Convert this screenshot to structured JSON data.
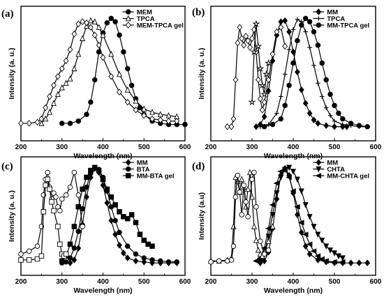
{
  "chart_data": [
    {
      "type": "line",
      "panel_label": "(a)",
      "xlabel": "Wavelength (nm)",
      "ylabel": "Intensity (a. u.)",
      "xlim": [
        200,
        600
      ],
      "xticks": [
        200,
        300,
        400,
        500,
        600
      ],
      "legend_position": "top-right",
      "series": [
        {
          "name": "MEM",
          "marker": "filled-circle",
          "x": [
            300,
            320,
            340,
            360,
            370,
            380,
            390,
            400,
            410,
            420,
            430,
            440,
            450,
            460,
            470,
            480,
            490,
            500,
            520,
            540,
            560,
            580,
            600
          ],
          "y": [
            0.06,
            0.06,
            0.08,
            0.14,
            0.25,
            0.45,
            0.7,
            0.87,
            0.96,
            1.0,
            0.97,
            0.85,
            0.7,
            0.55,
            0.4,
            0.28,
            0.2,
            0.14,
            0.08,
            0.06,
            0.05,
            0.05,
            0.05
          ]
        },
        {
          "name": "TPCA",
          "marker": "open-triangle",
          "x": [
            250,
            260,
            270,
            280,
            290,
            300,
            310,
            320,
            330,
            340,
            350,
            360,
            370,
            380,
            390,
            400,
            420,
            440,
            460,
            480,
            500,
            520,
            540,
            560,
            580
          ],
          "y": [
            0.06,
            0.1,
            0.16,
            0.24,
            0.32,
            0.38,
            0.42,
            0.46,
            0.55,
            0.68,
            0.82,
            0.93,
            0.98,
            0.97,
            0.92,
            0.85,
            0.68,
            0.5,
            0.36,
            0.26,
            0.19,
            0.16,
            0.14,
            0.13,
            0.12
          ]
        },
        {
          "name": "MEM-TPCA gel",
          "marker": "open-diamond",
          "x": [
            200,
            220,
            240,
            250,
            260,
            270,
            280,
            290,
            300,
            310,
            320,
            330,
            340,
            350,
            360,
            370,
            380,
            390,
            400,
            420,
            440,
            460,
            480,
            500,
            520,
            540,
            560,
            580
          ],
          "y": [
            0.06,
            0.06,
            0.07,
            0.1,
            0.2,
            0.3,
            0.4,
            0.48,
            0.55,
            0.62,
            0.72,
            0.86,
            0.95,
            0.97,
            0.96,
            0.92,
            0.85,
            0.76,
            0.65,
            0.48,
            0.34,
            0.25,
            0.18,
            0.13,
            0.1,
            0.09,
            0.08,
            0.08
          ]
        }
      ]
    },
    {
      "type": "line",
      "panel_label": "(b)",
      "xlabel": "Wavelength (nm)",
      "ylabel": "Intensity (a. u.)",
      "xlim": [
        200,
        600
      ],
      "xticks": [
        200,
        300,
        400,
        500,
        600
      ],
      "legend_position": "top-right",
      "series": [
        {
          "name": "MM",
          "marker": "filled-diamond",
          "x": [
            310,
            320,
            330,
            340,
            350,
            360,
            370,
            380,
            390,
            400,
            410,
            420,
            430,
            440,
            450,
            460,
            480,
            500,
            520,
            530
          ],
          "y": [
            0.03,
            0.05,
            0.12,
            0.35,
            0.62,
            0.85,
            0.97,
            0.98,
            0.88,
            0.7,
            0.52,
            0.36,
            0.24,
            0.15,
            0.09,
            0.06,
            0.04,
            0.03,
            0.03,
            0.03
          ]
        },
        {
          "name": "TPCA",
          "marker": "cross",
          "x": [
            320,
            340,
            360,
            370,
            380,
            390,
            400,
            410,
            420,
            430,
            440,
            450,
            460,
            470,
            480,
            490,
            500,
            520,
            540,
            560,
            580
          ],
          "y": [
            0.03,
            0.05,
            0.15,
            0.3,
            0.5,
            0.72,
            0.9,
            0.99,
            0.97,
            0.88,
            0.74,
            0.58,
            0.42,
            0.3,
            0.2,
            0.13,
            0.08,
            0.05,
            0.04,
            0.03,
            0.03
          ]
        },
        {
          "name": "MM-TPCA gel",
          "marker": "filled-circle",
          "x": [
            330,
            350,
            370,
            380,
            390,
            400,
            410,
            420,
            430,
            440,
            450,
            460,
            470,
            480,
            490,
            500,
            510,
            520,
            540,
            560,
            580
          ],
          "y": [
            0.03,
            0.05,
            0.1,
            0.22,
            0.4,
            0.6,
            0.8,
            0.94,
            1.0,
            0.97,
            0.88,
            0.76,
            0.6,
            0.45,
            0.32,
            0.22,
            0.15,
            0.1,
            0.06,
            0.04,
            0.03
          ]
        },
        {
          "name": "",
          "marker": "open-diamond",
          "x": [
            240,
            250,
            255,
            260,
            265,
            270,
            275,
            280,
            285,
            290,
            295,
            300,
            305,
            310,
            315,
            320,
            325,
            330,
            340,
            350,
            360,
            370,
            380
          ],
          "y": [
            0.03,
            0.03,
            0.1,
            0.45,
            0.78,
            0.92,
            0.82,
            0.76,
            0.84,
            0.8,
            0.74,
            0.82,
            0.9,
            0.7,
            0.45,
            0.28,
            0.18,
            0.25,
            0.45,
            0.68,
            0.88,
            0.92,
            0.75
          ]
        },
        {
          "name": "",
          "marker": "open-star",
          "x": [
            300,
            305,
            310,
            315,
            320,
            325,
            330,
            335,
            340
          ],
          "y": [
            0.25,
            0.7,
            0.95,
            0.75,
            0.55,
            0.4,
            0.32,
            0.5,
            0.6
          ]
        }
      ]
    },
    {
      "type": "line",
      "panel_label": "(c)",
      "xlabel": "Wavelength (nm)",
      "ylabel": "Intensity (a. u.)",
      "xlim": [
        200,
        600
      ],
      "xticks": [
        200,
        300,
        400,
        500,
        600
      ],
      "legend_position": "top-right",
      "series": [
        {
          "name": "MM",
          "marker": "filled-diamond",
          "x": [
            320,
            330,
            340,
            350,
            360,
            370,
            380,
            390,
            400,
            410,
            420,
            430,
            440,
            450,
            460,
            480,
            500,
            520,
            540,
            560,
            580
          ],
          "y": [
            0.03,
            0.06,
            0.18,
            0.42,
            0.7,
            0.9,
            0.99,
            0.95,
            0.82,
            0.64,
            0.46,
            0.32,
            0.21,
            0.13,
            0.08,
            0.05,
            0.04,
            0.03,
            0.03,
            0.03,
            0.03
          ]
        },
        {
          "name": "BTA",
          "marker": "filled-circle",
          "x": [
            300,
            310,
            320,
            330,
            340,
            350,
            360,
            370,
            380,
            390,
            400,
            410,
            420,
            430,
            440,
            460,
            480,
            500,
            520,
            540,
            560,
            580
          ],
          "y": [
            0.03,
            0.04,
            0.08,
            0.18,
            0.35,
            0.58,
            0.8,
            0.94,
            1.0,
            0.98,
            0.9,
            0.76,
            0.6,
            0.46,
            0.34,
            0.2,
            0.12,
            0.08,
            0.06,
            0.05,
            0.04,
            0.04
          ]
        },
        {
          "name": "MM-BTA gel",
          "marker": "filled-square",
          "x": [
            300,
            310,
            320,
            330,
            340,
            350,
            360,
            370,
            380,
            390,
            400,
            410,
            420,
            430,
            440,
            450,
            460,
            470,
            480,
            490,
            500,
            510,
            520
          ],
          "y": [
            0.05,
            0.1,
            0.22,
            0.4,
            0.6,
            0.78,
            0.9,
            0.97,
            1.0,
            0.97,
            0.88,
            0.78,
            0.7,
            0.62,
            0.55,
            0.5,
            0.48,
            0.52,
            0.44,
            0.32,
            0.26,
            0.22,
            0.2
          ]
        },
        {
          "name": "",
          "marker": "open-circle",
          "x": [
            200,
            220,
            240,
            250,
            255,
            260,
            265,
            270,
            275,
            280,
            285,
            290,
            295,
            300,
            310,
            320,
            330,
            340,
            350
          ],
          "y": [
            0.12,
            0.15,
            0.2,
            0.4,
            0.72,
            0.88,
            0.95,
            0.8,
            0.68,
            0.74,
            0.7,
            0.6,
            0.56,
            0.68,
            0.72,
            0.8,
            0.95,
            0.72,
            0.4
          ]
        },
        {
          "name": "",
          "marker": "open-square",
          "x": [
            200,
            220,
            240,
            250,
            255,
            260,
            265,
            270,
            275,
            280,
            290,
            295,
            300,
            305,
            310
          ],
          "y": [
            0.06,
            0.06,
            0.07,
            0.1,
            0.55,
            0.82,
            0.88,
            0.78,
            0.65,
            0.56,
            0.4,
            0.22,
            0.12,
            0.1,
            0.12
          ]
        }
      ]
    },
    {
      "type": "line",
      "panel_label": "(d)",
      "xlabel": "Wavelength (nm)",
      "ylabel": "Intensity (a.u)",
      "xlim": [
        200,
        600
      ],
      "xticks": [
        200,
        300,
        400,
        500,
        600
      ],
      "legend_position": "top-right",
      "series": [
        {
          "name": "MM",
          "marker": "filled-diamond",
          "x": [
            320,
            330,
            340,
            350,
            360,
            370,
            380,
            390,
            400,
            410,
            420,
            430,
            440,
            460,
            480,
            500,
            520,
            540,
            560,
            580
          ],
          "y": [
            0.03,
            0.05,
            0.14,
            0.38,
            0.68,
            0.92,
            0.99,
            0.92,
            0.74,
            0.52,
            0.34,
            0.2,
            0.12,
            0.06,
            0.04,
            0.03,
            0.03,
            0.03,
            0.03,
            0.03
          ]
        },
        {
          "name": "CHTA",
          "marker": "filled-triangle-down",
          "x": [
            320,
            330,
            340,
            350,
            360,
            370,
            380,
            390,
            400,
            410,
            420,
            430,
            440,
            450,
            460,
            470,
            480,
            490,
            500,
            510,
            520
          ],
          "y": [
            0.05,
            0.12,
            0.3,
            0.52,
            0.74,
            0.9,
            0.98,
            1.0,
            0.96,
            0.88,
            0.76,
            0.62,
            0.5,
            0.4,
            0.32,
            0.26,
            0.2,
            0.16,
            0.13,
            0.1,
            0.08
          ]
        },
        {
          "name": "MM-CHTA gel",
          "marker": "filled-triangle-left",
          "x": [
            310,
            320,
            330,
            340,
            350,
            360,
            370,
            380,
            390,
            400,
            410,
            420,
            430,
            440,
            450,
            460,
            470,
            480,
            500,
            520
          ],
          "y": [
            0.05,
            0.08,
            0.18,
            0.38,
            0.62,
            0.84,
            0.96,
            0.98,
            0.9,
            0.76,
            0.6,
            0.44,
            0.32,
            0.22,
            0.15,
            0.1,
            0.07,
            0.05,
            0.04,
            0.04
          ]
        },
        {
          "name": "",
          "marker": "open-triangle",
          "x": [
            200,
            220,
            240,
            250,
            255,
            260,
            265,
            270,
            275,
            280,
            285,
            290,
            295,
            300,
            305,
            310,
            315,
            320,
            325,
            330,
            340,
            350
          ],
          "y": [
            0.05,
            0.05,
            0.06,
            0.08,
            0.4,
            0.9,
            0.86,
            0.75,
            0.88,
            0.8,
            0.6,
            0.78,
            0.95,
            0.7,
            0.4,
            0.26,
            0.16,
            0.12,
            0.1,
            0.14,
            0.25,
            0.4
          ]
        },
        {
          "name": "",
          "marker": "open-circle",
          "x": [
            200,
            220,
            240,
            250,
            255,
            260,
            265,
            270,
            275,
            280,
            285,
            290,
            300,
            305,
            310,
            320,
            330,
            340
          ],
          "y": [
            0.04,
            0.05,
            0.05,
            0.06,
            0.2,
            0.7,
            0.92,
            0.75,
            0.52,
            0.82,
            0.65,
            0.5,
            0.88,
            0.95,
            0.6,
            0.25,
            0.12,
            0.16
          ]
        }
      ]
    }
  ]
}
